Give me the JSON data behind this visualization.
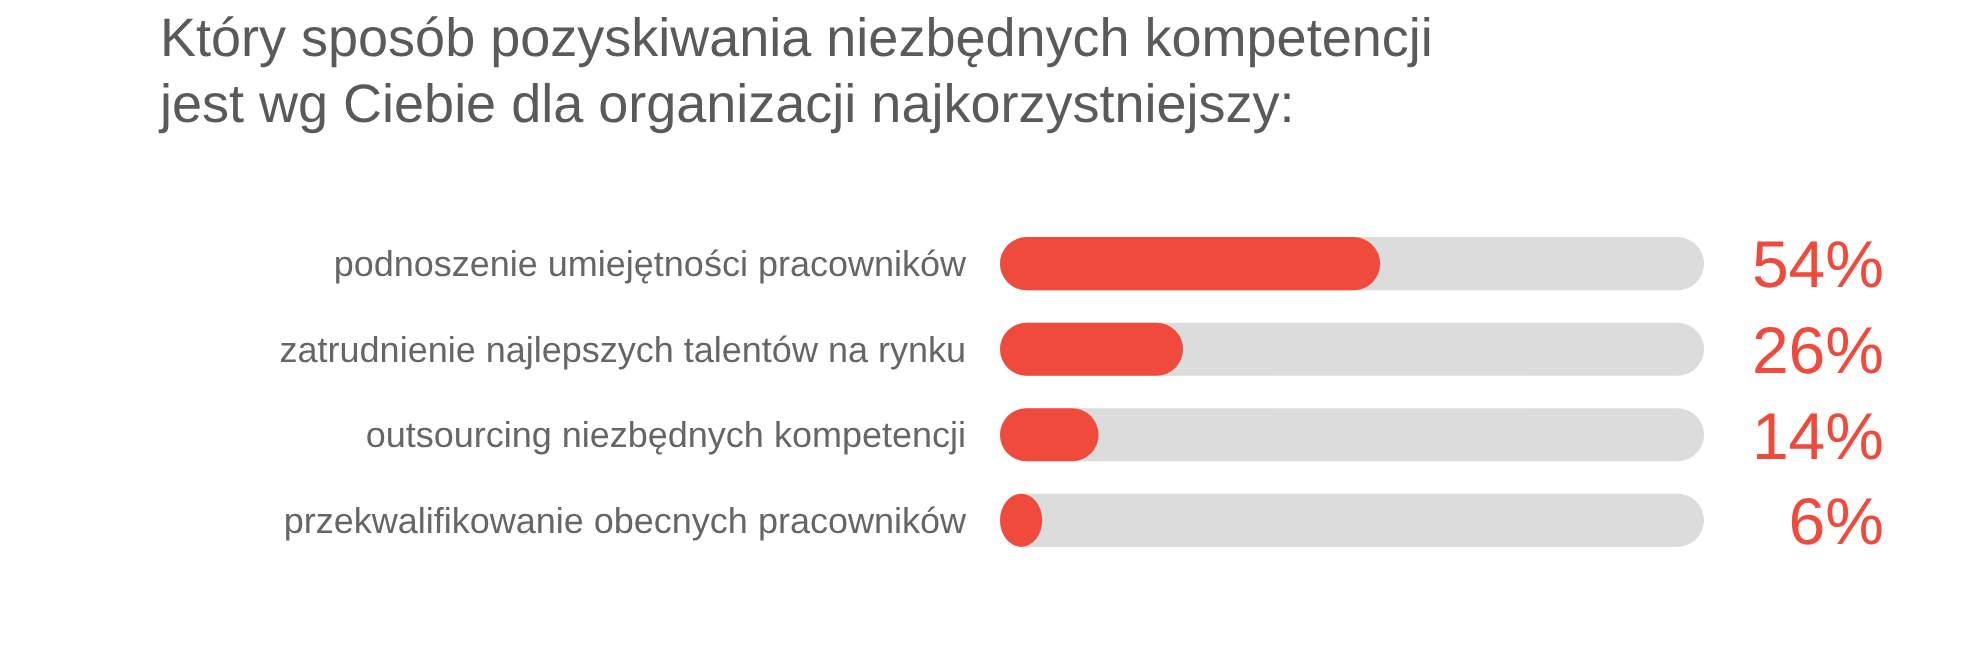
{
  "chart_data": {
    "type": "bar",
    "orientation": "horizontal",
    "title": "Który sposób pozyskiwania niezbędnych kompetencji\njest wg Ciebie dla organizacji najkorzystniejszy:",
    "categories": [
      "podnoszenie umiejętności pracowników",
      "zatrudnienie najlepszych talentów na rynku",
      "outsourcing niezbędnych kompetencji",
      "przekwalifikowanie obecnych pracowników"
    ],
    "values": [
      54,
      26,
      14,
      6
    ],
    "value_labels": [
      "54%",
      "26%",
      "14%",
      "6%"
    ],
    "color": "#f04a3c",
    "xlim": [
      0,
      100
    ]
  }
}
